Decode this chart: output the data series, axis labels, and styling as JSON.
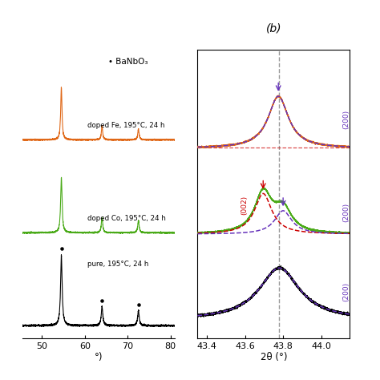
{
  "panel_b_xlabel": "2θ (°)",
  "panel_b_xlim": [
    43.35,
    44.15
  ],
  "panel_b_xticks": [
    43.4,
    43.6,
    43.8,
    44.0
  ],
  "panel_b_xtick_labels": [
    "43.4",
    "43.6",
    "43.8",
    "44.0"
  ],
  "panel_b_dashed_line": 43.78,
  "panel_a_xlabel": "°)",
  "panel_a_xlim": [
    45.5,
    81
  ],
  "panel_a_xticks": [
    50,
    60,
    70,
    80
  ],
  "panel_a_xtick_labels": [
    "50",
    "60",
    "70",
    "80"
  ],
  "colors": {
    "black": "#000000",
    "orange": "#E06818",
    "green": "#4aaa18",
    "red_dashed": "#cc0000",
    "purple_dashed": "#6633bb",
    "gray": "#888888"
  },
  "legend_dot": "• BaNbO₃",
  "label_orange": "doped Fe, 195°C, 24 h",
  "label_green": "doped Co, 195°C, 24 h",
  "label_black": "pure, 195°C, 24 h",
  "panel_b_label_200_top": "(200)",
  "panel_b_label_200_mid": "(200)",
  "panel_b_label_002_mid": "(002)",
  "panel_b_label_200_bot": "(200)"
}
